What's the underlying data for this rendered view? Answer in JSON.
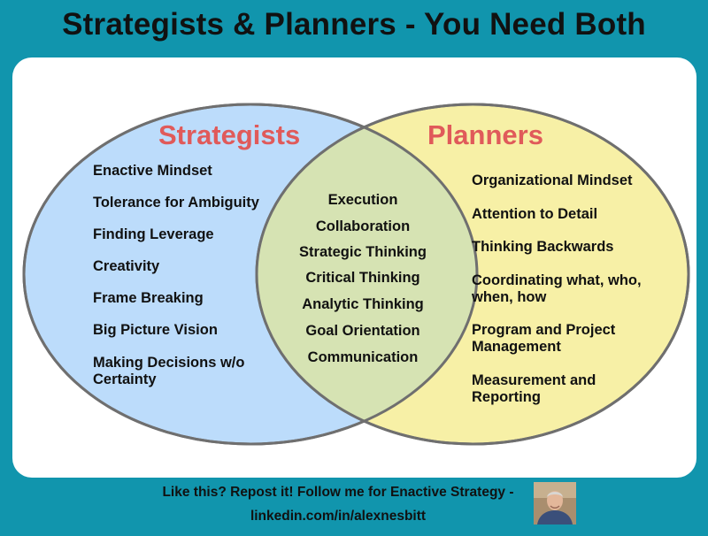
{
  "title": "Strategists & Planners - You Need Both",
  "colors": {
    "background": "#1195ad",
    "strategists_fill": "#bcdcfb",
    "planners_fill": "#f7f0a6",
    "overlap_fill": "#d6e3b3",
    "heading": "#e05a5a"
  },
  "strategists": {
    "heading": "Strategists",
    "items": [
      "Enactive Mindset",
      "Tolerance for Ambiguity",
      "Finding Leverage",
      "Creativity",
      "Frame Breaking",
      "Big Picture Vision",
      "Making Decisions w/o Certainty"
    ]
  },
  "shared": {
    "items": [
      "Execution",
      "Collaboration",
      "Strategic Thinking",
      "Critical Thinking",
      "Analytic Thinking",
      "Goal Orientation",
      "Communication"
    ]
  },
  "planners": {
    "heading": "Planners",
    "items": [
      "Organizational Mindset",
      "Attention to Detail",
      "Thinking Backwards",
      "Coordinating what, who, when, how",
      "Program and Project Management",
      "Measurement and Reporting"
    ]
  },
  "footer": {
    "line1": "Like this? Repost it!  Follow me for Enactive Strategy -",
    "line2": "linkedin.com/in/alexnesbitt"
  }
}
